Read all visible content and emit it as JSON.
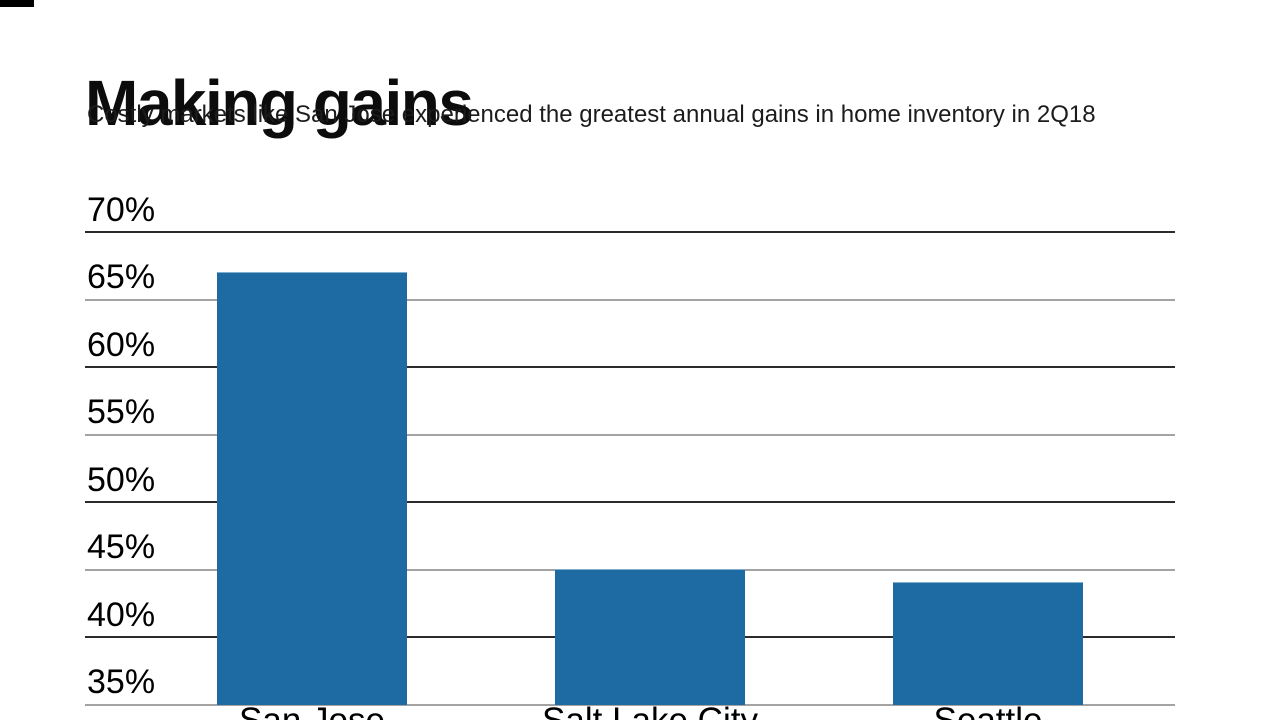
{
  "header": {
    "title": "Making gains",
    "subtitle": "Costly markets like San Jose experienced the greatest annual gains in home inventory in 2Q18"
  },
  "chart_data": {
    "type": "bar",
    "title": "Making gains",
    "subtitle": "Costly markets like San Jose experienced the greatest annual gains in home inventory in 2Q18",
    "categories": [
      "San Jose",
      "Salt Lake City",
      "Seattle"
    ],
    "values": [
      67,
      45,
      44
    ],
    "unit": "%",
    "xlabel": "",
    "ylabel": "",
    "ylim": [
      35,
      70
    ],
    "yticks": [
      70,
      65,
      60,
      55,
      50,
      45,
      40,
      35
    ],
    "ytick_suffix": "%",
    "grid": true,
    "legend": "none",
    "tick_label_position": "above-line-left",
    "bar_color": "#1E6AA3",
    "gridline_color_major": "#2b2b2b",
    "gridline_color_minor": "#a3a3a3",
    "text_color": "#000000",
    "x_labels_clipped_at_bottom": true
  }
}
